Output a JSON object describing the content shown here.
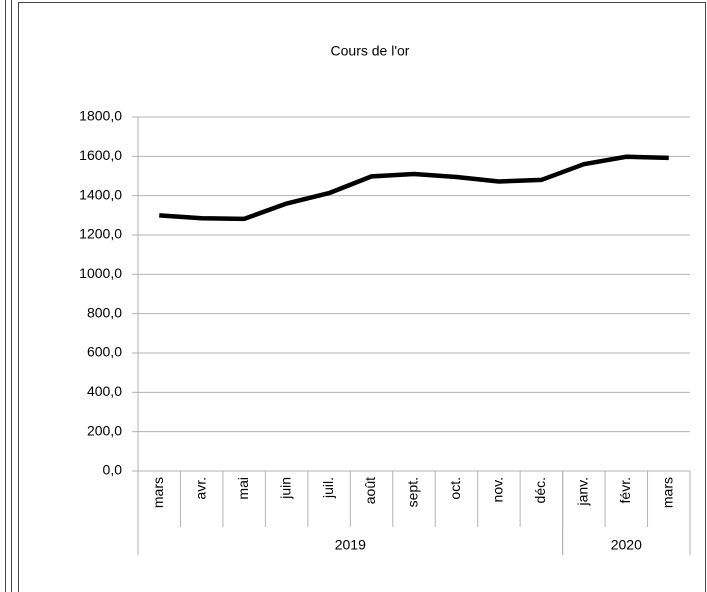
{
  "chart_data": {
    "type": "line",
    "title": "Cours de l'or",
    "category_groups": [
      {
        "label": "2019",
        "categories": [
          "mars",
          "avr.",
          "mai",
          "juin",
          "juil.",
          "août",
          "sept.",
          "oct.",
          "nov.",
          "déc."
        ]
      },
      {
        "label": "2020",
        "categories": [
          "janv.",
          "févr.",
          "mars"
        ]
      }
    ],
    "series": [
      {
        "color": "#000000",
        "values": [
          1300,
          1285,
          1282,
          1360,
          1413,
          1498,
          1510,
          1495,
          1472,
          1480,
          1560,
          1598,
          1592
        ]
      }
    ],
    "ylim": [
      0,
      1800
    ],
    "yticks": [
      {
        "value": 0,
        "label": "0,0"
      },
      {
        "value": 200,
        "label": "200,0"
      },
      {
        "value": 400,
        "label": "400,0"
      },
      {
        "value": 600,
        "label": "600,0"
      },
      {
        "value": 800,
        "label": "800,0"
      },
      {
        "value": 1000,
        "label": "1000,0"
      },
      {
        "value": 1200,
        "label": "1200,0"
      },
      {
        "value": 1400,
        "label": "1400,0"
      },
      {
        "value": 1600,
        "label": "1600,0"
      },
      {
        "value": 1800,
        "label": "1800,0"
      }
    ],
    "grid": true
  }
}
